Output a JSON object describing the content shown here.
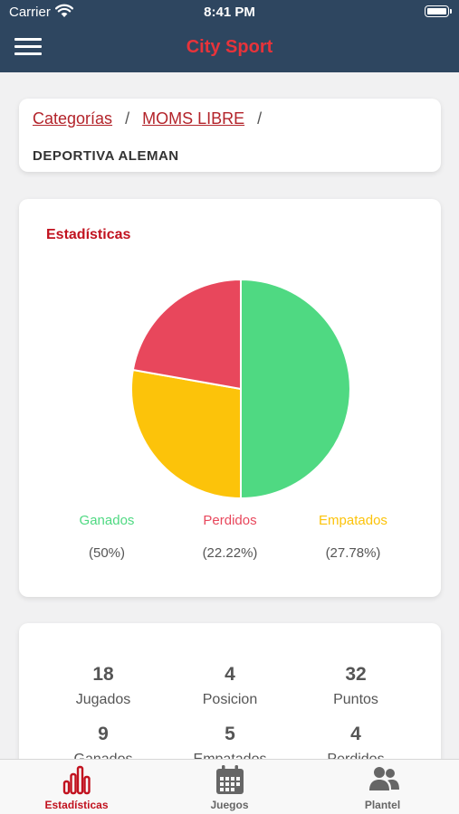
{
  "status_bar": {
    "carrier": "Carrier",
    "time": "8:41 PM"
  },
  "header": {
    "title": "City Sport",
    "menu_icon": "hamburger-menu-icon"
  },
  "breadcrumb": {
    "items": [
      {
        "label": "Categorías"
      },
      {
        "label": "MOMS LIBRE"
      }
    ],
    "separator": "/",
    "current": "DEPORTIVA ALEMAN"
  },
  "stats": {
    "title": "Estadísticas",
    "legend": [
      {
        "label": "Ganados",
        "percent": "(50%)",
        "color": "#4fd982"
      },
      {
        "label": "Perdidos",
        "percent": "(22.22%)",
        "color": "#e8475c"
      },
      {
        "label": "Empatados",
        "percent": "(27.78%)",
        "color": "#fcc30a"
      }
    ]
  },
  "chart_data": {
    "type": "pie",
    "title": "",
    "slices": [
      {
        "label": "Ganados",
        "value": 50,
        "color": "#4fd982"
      },
      {
        "label": "Empatados",
        "value": 27.78,
        "color": "#fcc30a"
      },
      {
        "label": "Perdidos",
        "value": 22.22,
        "color": "#e8475c"
      }
    ]
  },
  "summary": {
    "metrics": [
      {
        "value": "18",
        "label": "Jugados"
      },
      {
        "value": "4",
        "label": "Posicion"
      },
      {
        "value": "32",
        "label": "Puntos"
      },
      {
        "value": "9",
        "label": "Ganados"
      },
      {
        "value": "5",
        "label": "Empatados"
      },
      {
        "value": "4",
        "label": "Perdidos"
      }
    ]
  },
  "tabs": [
    {
      "label": "Estadísticas",
      "icon": "bar-chart-icon",
      "active": true
    },
    {
      "label": "Juegos",
      "icon": "calendar-icon",
      "active": false
    },
    {
      "label": "Plantel",
      "icon": "users-icon",
      "active": false
    }
  ],
  "colors": {
    "header_bg": "#2e4660",
    "accent": "#c1121f",
    "title_red": "#e8333a"
  }
}
